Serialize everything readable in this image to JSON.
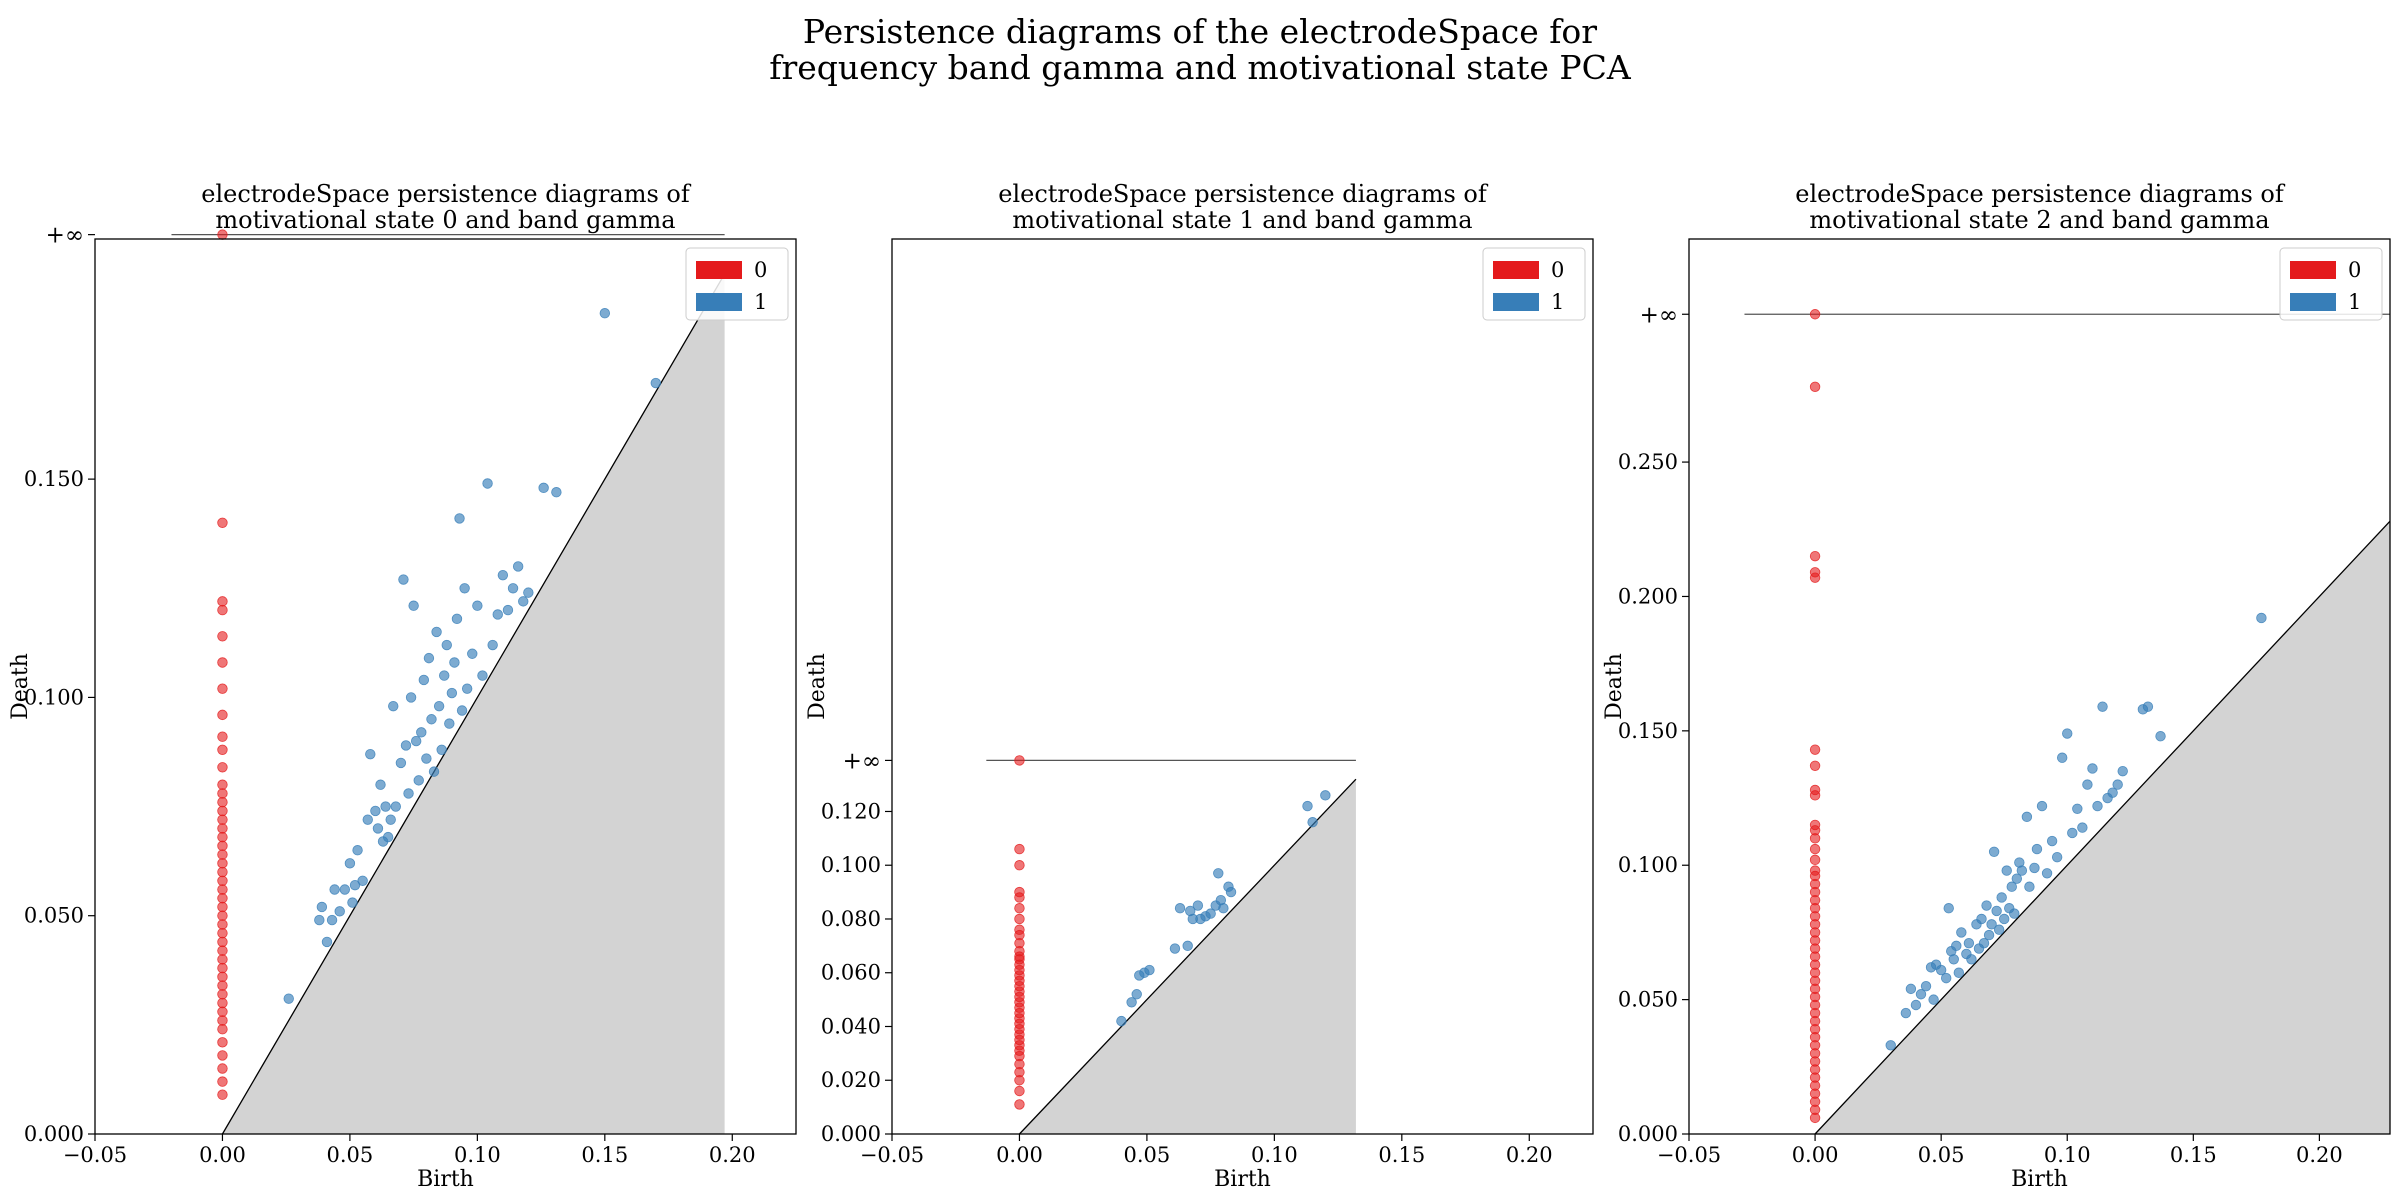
{
  "figure": {
    "title_line1": "Persistence diagrams of the electrodeSpace for",
    "title_line2": "frequency band gamma and motivational state PCA"
  },
  "colors": {
    "h0": "#e41a1c",
    "h1": "#377eb8",
    "shade": "#d3d3d3"
  },
  "chart_data": [
    {
      "type": "scatter",
      "title": [
        "electrodeSpace persistence diagrams of",
        "motivational state 0 and band gamma"
      ],
      "xlabel": "Birth",
      "ylabel": "Death",
      "xlim": [
        -0.05,
        0.225
      ],
      "ylim": [
        0.0,
        0.205
      ],
      "xticks": [
        -0.05,
        0.0,
        0.05,
        0.1,
        0.15,
        0.2
      ],
      "xtick_labels": [
        "−0.05",
        "0.00",
        "0.05",
        "0.10",
        "0.15",
        "0.20"
      ],
      "yticks": [
        0.0,
        0.05,
        0.1,
        0.15
      ],
      "ytick_labels": [
        "0.000",
        "0.050",
        "0.100",
        "0.150"
      ],
      "inf_value": 0.206,
      "inf_label": "+∞",
      "inf_line_x": [
        -0.02,
        0.197
      ],
      "diagonal_max": 0.197,
      "legend": {
        "position": "top-right",
        "entries": [
          "0",
          "1"
        ]
      },
      "series": [
        {
          "name": "0",
          "color": "#e41a1c",
          "x": 0.0,
          "y": [
            0.009,
            0.012,
            0.015,
            0.018,
            0.021,
            0.024,
            0.026,
            0.028,
            0.03,
            0.032,
            0.034,
            0.036,
            0.038,
            0.04,
            0.042,
            0.044,
            0.046,
            0.048,
            0.05,
            0.052,
            0.054,
            0.056,
            0.058,
            0.06,
            0.062,
            0.064,
            0.066,
            0.068,
            0.07,
            0.072,
            0.074,
            0.076,
            0.078,
            0.08,
            0.084,
            0.088,
            0.091,
            0.096,
            0.102,
            0.108,
            0.114,
            0.12,
            0.122,
            0.14,
            0.206
          ]
        },
        {
          "name": "1",
          "color": "#377eb8",
          "points": [
            [
              0.026,
              0.031
            ],
            [
              0.038,
              0.049
            ],
            [
              0.039,
              0.052
            ],
            [
              0.041,
              0.044
            ],
            [
              0.043,
              0.049
            ],
            [
              0.044,
              0.056
            ],
            [
              0.046,
              0.051
            ],
            [
              0.048,
              0.056
            ],
            [
              0.05,
              0.062
            ],
            [
              0.051,
              0.053
            ],
            [
              0.052,
              0.057
            ],
            [
              0.053,
              0.065
            ],
            [
              0.055,
              0.058
            ],
            [
              0.057,
              0.072
            ],
            [
              0.058,
              0.087
            ],
            [
              0.06,
              0.074
            ],
            [
              0.061,
              0.07
            ],
            [
              0.062,
              0.08
            ],
            [
              0.063,
              0.067
            ],
            [
              0.064,
              0.075
            ],
            [
              0.065,
              0.068
            ],
            [
              0.066,
              0.072
            ],
            [
              0.067,
              0.098
            ],
            [
              0.068,
              0.075
            ],
            [
              0.07,
              0.085
            ],
            [
              0.071,
              0.127
            ],
            [
              0.072,
              0.089
            ],
            [
              0.073,
              0.078
            ],
            [
              0.074,
              0.1
            ],
            [
              0.075,
              0.121
            ],
            [
              0.076,
              0.09
            ],
            [
              0.077,
              0.081
            ],
            [
              0.078,
              0.092
            ],
            [
              0.079,
              0.104
            ],
            [
              0.08,
              0.086
            ],
            [
              0.081,
              0.109
            ],
            [
              0.082,
              0.095
            ],
            [
              0.083,
              0.083
            ],
            [
              0.084,
              0.115
            ],
            [
              0.085,
              0.098
            ],
            [
              0.086,
              0.088
            ],
            [
              0.087,
              0.105
            ],
            [
              0.088,
              0.112
            ],
            [
              0.089,
              0.094
            ],
            [
              0.09,
              0.101
            ],
            [
              0.091,
              0.108
            ],
            [
              0.092,
              0.118
            ],
            [
              0.093,
              0.141
            ],
            [
              0.094,
              0.097
            ],
            [
              0.095,
              0.125
            ],
            [
              0.096,
              0.102
            ],
            [
              0.098,
              0.11
            ],
            [
              0.1,
              0.121
            ],
            [
              0.102,
              0.105
            ],
            [
              0.104,
              0.149
            ],
            [
              0.106,
              0.112
            ],
            [
              0.108,
              0.119
            ],
            [
              0.11,
              0.128
            ],
            [
              0.112,
              0.12
            ],
            [
              0.114,
              0.125
            ],
            [
              0.116,
              0.13
            ],
            [
              0.118,
              0.122
            ],
            [
              0.12,
              0.124
            ],
            [
              0.126,
              0.148
            ],
            [
              0.131,
              0.147
            ],
            [
              0.15,
              0.188
            ],
            [
              0.17,
              0.172
            ]
          ]
        }
      ]
    },
    {
      "type": "scatter",
      "title": [
        "electrodeSpace persistence diagrams of",
        "motivational state 1 and band gamma"
      ],
      "xlabel": "Birth",
      "ylabel": "Death",
      "xlim": [
        -0.05,
        0.225
      ],
      "ylim": [
        0.0,
        0.333
      ],
      "xticks": [
        -0.05,
        0.0,
        0.05,
        0.1,
        0.15,
        0.2
      ],
      "xtick_labels": [
        "−0.05",
        "0.00",
        "0.05",
        "0.10",
        "0.15",
        "0.20"
      ],
      "yticks": [
        0.0,
        0.02,
        0.04,
        0.06,
        0.08,
        0.1,
        0.12
      ],
      "ytick_labels": [
        "0.000",
        "0.020",
        "0.040",
        "0.060",
        "0.080",
        "0.100",
        "0.120"
      ],
      "inf_value": 0.139,
      "inf_label": "+∞",
      "inf_line_x": [
        -0.013,
        0.132
      ],
      "diagonal_max": 0.132,
      "legend": {
        "position": "top-right",
        "entries": [
          "0",
          "1"
        ]
      },
      "series": [
        {
          "name": "0",
          "color": "#e41a1c",
          "x": 0.0,
          "y": [
            0.011,
            0.016,
            0.02,
            0.023,
            0.026,
            0.029,
            0.031,
            0.033,
            0.035,
            0.037,
            0.039,
            0.041,
            0.043,
            0.045,
            0.047,
            0.049,
            0.051,
            0.053,
            0.055,
            0.057,
            0.059,
            0.061,
            0.063,
            0.065,
            0.066,
            0.068,
            0.071,
            0.074,
            0.076,
            0.08,
            0.084,
            0.088,
            0.09,
            0.1,
            0.106,
            0.139
          ]
        },
        {
          "name": "1",
          "color": "#377eb8",
          "points": [
            [
              0.04,
              0.042
            ],
            [
              0.044,
              0.049
            ],
            [
              0.046,
              0.052
            ],
            [
              0.047,
              0.059
            ],
            [
              0.049,
              0.06
            ],
            [
              0.051,
              0.061
            ],
            [
              0.061,
              0.069
            ],
            [
              0.063,
              0.084
            ],
            [
              0.066,
              0.07
            ],
            [
              0.067,
              0.083
            ],
            [
              0.068,
              0.08
            ],
            [
              0.07,
              0.085
            ],
            [
              0.071,
              0.08
            ],
            [
              0.073,
              0.081
            ],
            [
              0.075,
              0.082
            ],
            [
              0.077,
              0.085
            ],
            [
              0.078,
              0.097
            ],
            [
              0.079,
              0.087
            ],
            [
              0.08,
              0.084
            ],
            [
              0.082,
              0.092
            ],
            [
              0.083,
              0.09
            ],
            [
              0.113,
              0.122
            ],
            [
              0.115,
              0.116
            ],
            [
              0.12,
              0.126
            ]
          ]
        }
      ]
    },
    {
      "type": "scatter",
      "title": [
        "electrodeSpace persistence diagrams of",
        "motivational state 2 and band gamma"
      ],
      "xlabel": "Birth",
      "ylabel": "Death",
      "xlim": [
        -0.05,
        0.228
      ],
      "ylim": [
        0.0,
        0.333
      ],
      "xticks": [
        -0.05,
        0.0,
        0.05,
        0.1,
        0.15,
        0.2
      ],
      "xtick_labels": [
        "−0.05",
        "0.00",
        "0.05",
        "0.10",
        "0.15",
        "0.20"
      ],
      "yticks": [
        0.0,
        0.05,
        0.1,
        0.15,
        0.2,
        0.25
      ],
      "ytick_labels": [
        "0.000",
        "0.050",
        "0.100",
        "0.150",
        "0.200",
        "0.250"
      ],
      "inf_value": 0.305,
      "inf_label": "+∞",
      "inf_line_x": [
        -0.028,
        0.228
      ],
      "diagonal_max": 0.228,
      "legend": {
        "position": "top-right",
        "entries": [
          "0",
          "1"
        ]
      },
      "series": [
        {
          "name": "0",
          "color": "#e41a1c",
          "x": 0.0,
          "y": [
            0.006,
            0.009,
            0.012,
            0.015,
            0.018,
            0.021,
            0.024,
            0.027,
            0.03,
            0.033,
            0.036,
            0.039,
            0.042,
            0.045,
            0.048,
            0.051,
            0.054,
            0.057,
            0.06,
            0.063,
            0.066,
            0.069,
            0.072,
            0.075,
            0.078,
            0.081,
            0.084,
            0.087,
            0.09,
            0.093,
            0.096,
            0.098,
            0.102,
            0.106,
            0.11,
            0.113,
            0.115,
            0.126,
            0.128,
            0.137,
            0.143,
            0.207,
            0.209,
            0.215,
            0.278,
            0.305
          ]
        },
        {
          "name": "1",
          "color": "#377eb8",
          "points": [
            [
              0.03,
              0.033
            ],
            [
              0.036,
              0.045
            ],
            [
              0.038,
              0.054
            ],
            [
              0.04,
              0.048
            ],
            [
              0.042,
              0.052
            ],
            [
              0.044,
              0.055
            ],
            [
              0.046,
              0.062
            ],
            [
              0.047,
              0.05
            ],
            [
              0.048,
              0.063
            ],
            [
              0.05,
              0.061
            ],
            [
              0.052,
              0.058
            ],
            [
              0.053,
              0.084
            ],
            [
              0.054,
              0.068
            ],
            [
              0.055,
              0.065
            ],
            [
              0.056,
              0.07
            ],
            [
              0.057,
              0.06
            ],
            [
              0.058,
              0.075
            ],
            [
              0.06,
              0.067
            ],
            [
              0.061,
              0.071
            ],
            [
              0.062,
              0.065
            ],
            [
              0.064,
              0.078
            ],
            [
              0.065,
              0.069
            ],
            [
              0.066,
              0.08
            ],
            [
              0.067,
              0.071
            ],
            [
              0.068,
              0.085
            ],
            [
              0.069,
              0.074
            ],
            [
              0.07,
              0.078
            ],
            [
              0.071,
              0.105
            ],
            [
              0.072,
              0.083
            ],
            [
              0.073,
              0.076
            ],
            [
              0.074,
              0.088
            ],
            [
              0.075,
              0.08
            ],
            [
              0.076,
              0.098
            ],
            [
              0.077,
              0.084
            ],
            [
              0.078,
              0.092
            ],
            [
              0.079,
              0.082
            ],
            [
              0.08,
              0.095
            ],
            [
              0.081,
              0.101
            ],
            [
              0.082,
              0.098
            ],
            [
              0.084,
              0.118
            ],
            [
              0.085,
              0.092
            ],
            [
              0.087,
              0.099
            ],
            [
              0.088,
              0.106
            ],
            [
              0.09,
              0.122
            ],
            [
              0.092,
              0.097
            ],
            [
              0.094,
              0.109
            ],
            [
              0.096,
              0.103
            ],
            [
              0.098,
              0.14
            ],
            [
              0.1,
              0.149
            ],
            [
              0.102,
              0.112
            ],
            [
              0.104,
              0.121
            ],
            [
              0.106,
              0.114
            ],
            [
              0.108,
              0.13
            ],
            [
              0.11,
              0.136
            ],
            [
              0.112,
              0.122
            ],
            [
              0.114,
              0.159
            ],
            [
              0.116,
              0.125
            ],
            [
              0.118,
              0.127
            ],
            [
              0.12,
              0.13
            ],
            [
              0.122,
              0.135
            ],
            [
              0.13,
              0.158
            ],
            [
              0.132,
              0.159
            ],
            [
              0.137,
              0.148
            ],
            [
              0.177,
              0.192
            ]
          ]
        }
      ]
    }
  ]
}
